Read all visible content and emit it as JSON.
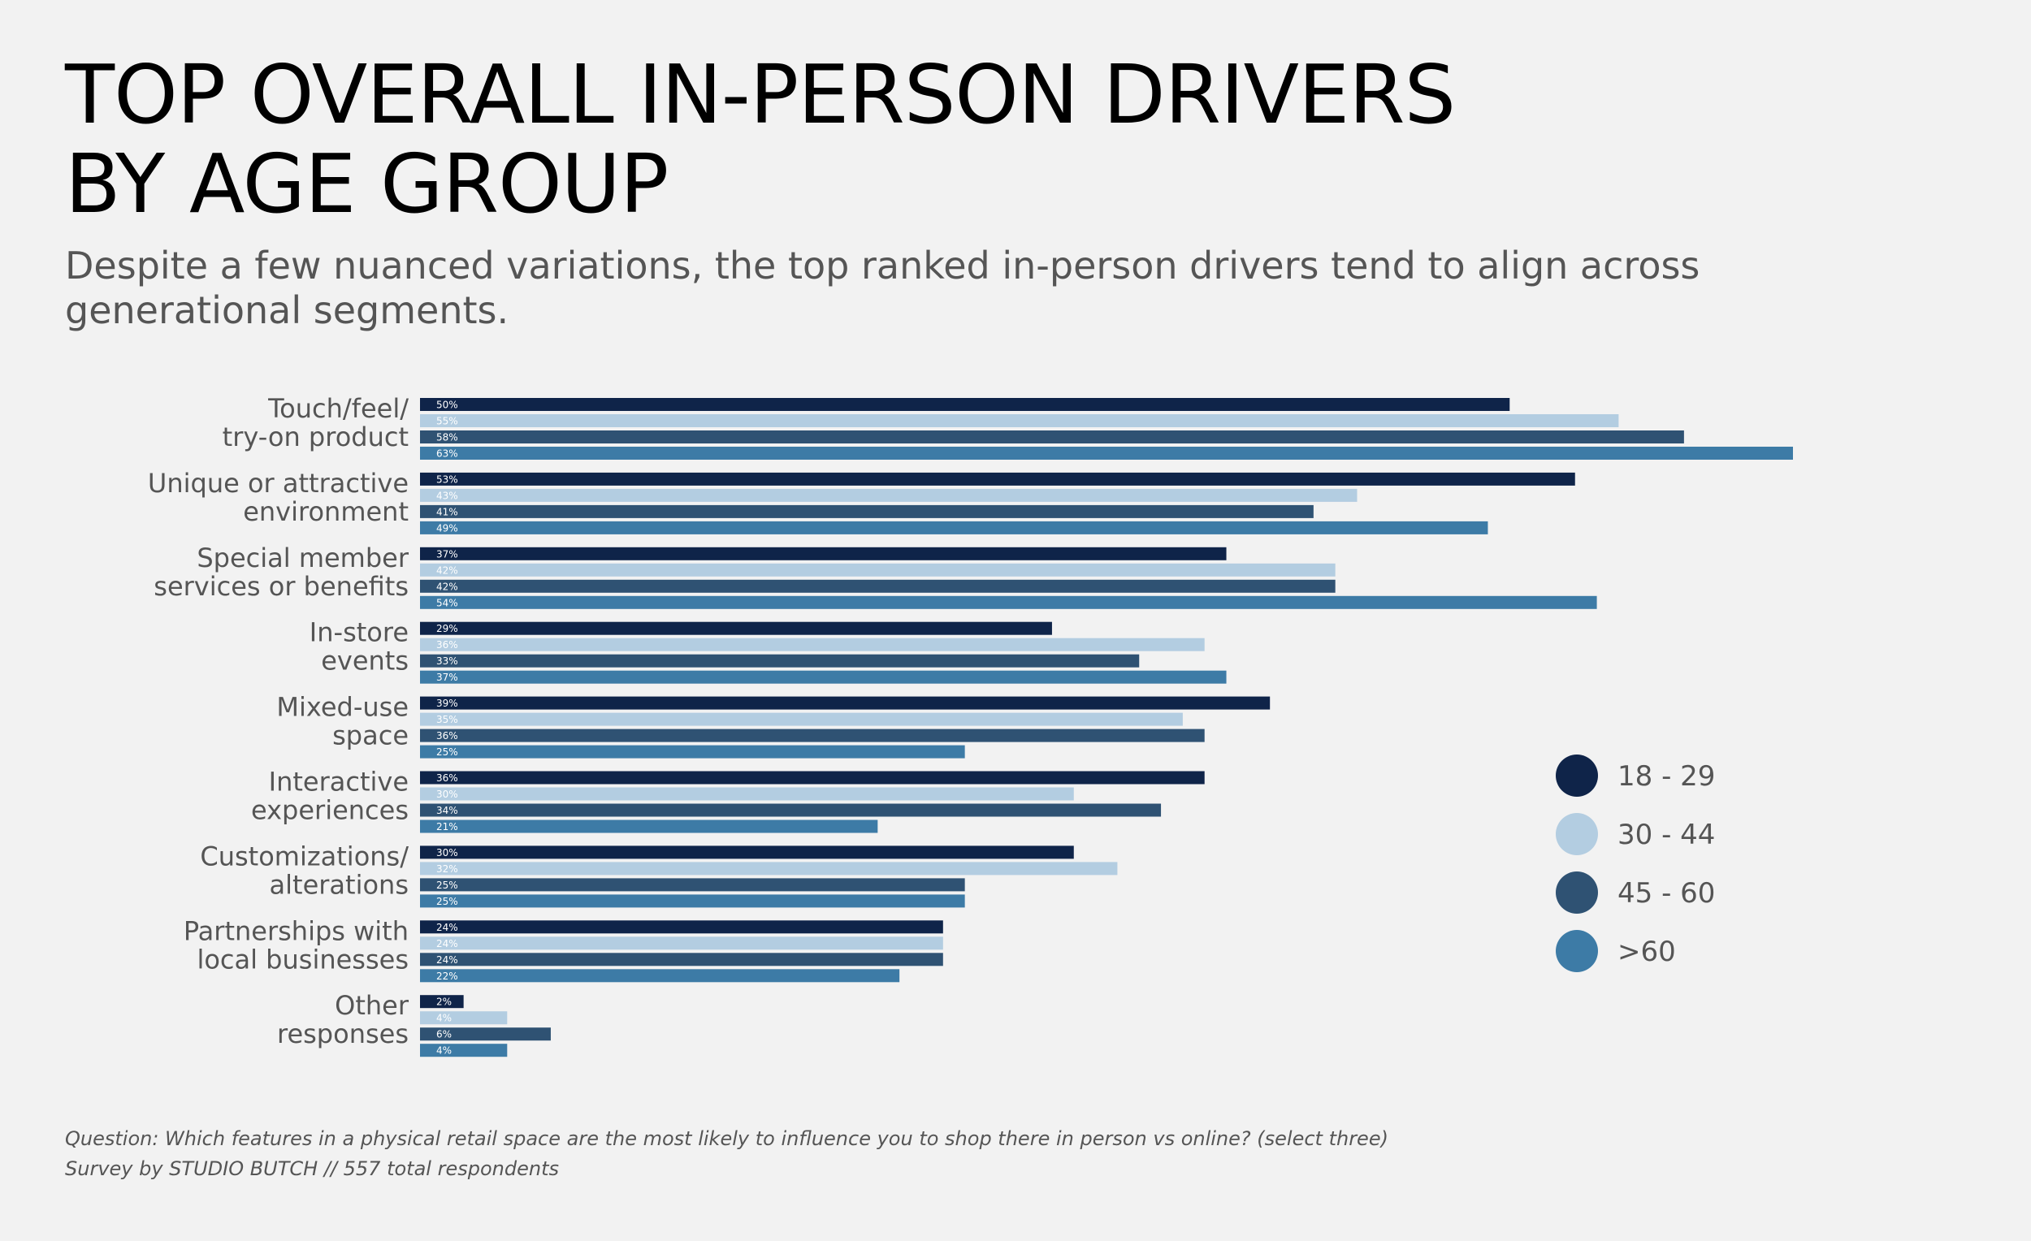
{
  "title_lines": [
    "TOP OVERALL IN-PERSON DRIVERS",
    "BY AGE GROUP"
  ],
  "subtitle": "Despite a few nuanced variations, the top ranked in-person drivers tend to align across generational segments.",
  "footnote": {
    "question": "Question: Which features in a physical retail space are the most likely to influence you to shop there in person vs online? (select three)",
    "source": "Survey by STUDIO BUTCH  //  557 total respondents"
  },
  "chart_data": {
    "type": "bar",
    "orientation": "horizontal",
    "value_format": "percent",
    "categories": [
      [
        "Touch/feel/",
        "try-on product"
      ],
      [
        "Unique or attractive",
        "environment"
      ],
      [
        "Special member",
        "services or benefits"
      ],
      [
        "In-store",
        "events"
      ],
      [
        "Mixed-use",
        "space"
      ],
      [
        "Interactive",
        "experiences"
      ],
      [
        "Customizations/",
        "alterations"
      ],
      [
        "Partnerships with",
        "local businesses"
      ],
      [
        "Other",
        "responses"
      ]
    ],
    "series": [
      {
        "name": "18 - 29",
        "color": "#0f2449",
        "values": [
          50,
          53,
          37,
          29,
          39,
          36,
          30,
          24,
          2
        ]
      },
      {
        "name": "30 - 44",
        "color": "#b3cde1",
        "values": [
          55,
          43,
          42,
          36,
          35,
          30,
          32,
          24,
          4
        ]
      },
      {
        "name": "45 - 60",
        "color": "#2f5273",
        "values": [
          58,
          41,
          42,
          33,
          36,
          34,
          25,
          24,
          6
        ]
      },
      {
        "name": ">60",
        "color": "#3d7ba6",
        "values": [
          63,
          49,
          54,
          37,
          25,
          21,
          25,
          22,
          4
        ]
      }
    ],
    "xlim": [
      0,
      63
    ],
    "grid": false,
    "legend_position": "right"
  }
}
